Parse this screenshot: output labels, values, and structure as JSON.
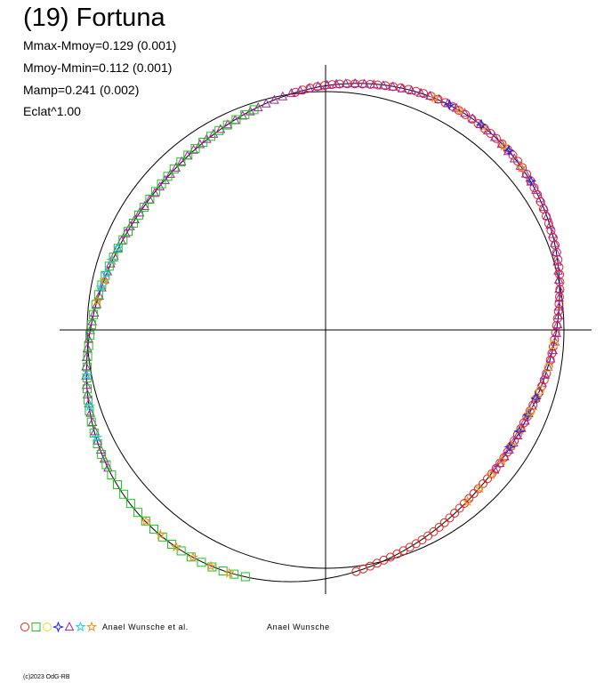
{
  "chart_data": {
    "type": "scatter",
    "title": "(19) Fortuna",
    "stats": [
      "Mmax-Mmoy=0.129 (0.001)",
      "Mmoy-Mmin=0.112 (0.001)",
      "Mamp=0.241 (0.002)",
      "Eclat^1.00"
    ],
    "mmax_mmoy": 0.129,
    "mmoy_mmin": 0.112,
    "amplitude": 0.241,
    "grid": false,
    "legend_placement": "bottom-left",
    "legend": [
      {
        "symbol": "circle",
        "color": "#e02020"
      },
      {
        "symbol": "square",
        "color": "#20c020"
      },
      {
        "symbol": "circle",
        "color": "#e0e020"
      },
      {
        "symbol": "bowtie-star",
        "color": "#2020d0"
      },
      {
        "symbol": "triangle",
        "color": "#a020a0"
      },
      {
        "symbol": "star",
        "color": "#20d0e0"
      },
      {
        "symbol": "star",
        "color": "#f09020"
      }
    ],
    "legend_labels": [
      "Anael Wunsche et al.",
      "Anael Wunsche"
    ],
    "series": [
      {
        "symbol": "circle",
        "color": "#e02020",
        "phase_range": [
          -0.02,
          0.48
        ],
        "count": 104
      },
      {
        "symbol": "triangle",
        "color": "#a020a0",
        "phase_range": [
          0.66,
          1.36
        ],
        "count": 118
      },
      {
        "symbol": "square",
        "color": "#20c020",
        "phase_range": [
          0.55,
          0.95
        ],
        "count": 58
      },
      {
        "symbol": "star",
        "color": "#f09020",
        "phase_range": [
          0.07,
          0.14
        ],
        "count": 5
      },
      {
        "symbol": "star",
        "color": "#f09020",
        "phase_range": [
          0.3,
          0.39
        ],
        "count": 8
      },
      {
        "symbol": "star",
        "color": "#f09020",
        "phase_range": [
          0.56,
          0.62
        ],
        "count": 6
      },
      {
        "symbol": "star",
        "color": "#f09020",
        "phase_range": [
          0.77,
          0.8
        ],
        "count": 3
      },
      {
        "symbol": "star",
        "color": "#20d0e0",
        "phase_range": [
          0.78,
          0.81
        ],
        "count": 4
      },
      {
        "symbol": "star",
        "color": "#20d0e0",
        "phase_range": [
          0.68,
          0.72
        ],
        "count": 3
      },
      {
        "symbol": "bowtie-star",
        "color": "#2020d0",
        "phase_range": [
          0.08,
          0.15
        ],
        "count": 4
      },
      {
        "symbol": "bowtie-star",
        "color": "#2020d0",
        "phase_range": [
          0.3,
          0.34
        ],
        "count": 4
      },
      {
        "symbol": "circle",
        "color": "#e0e020",
        "phase_range": [
          0.26,
          0.31
        ],
        "count": 4
      }
    ]
  },
  "footer": "(c)2023 OdG-RB"
}
